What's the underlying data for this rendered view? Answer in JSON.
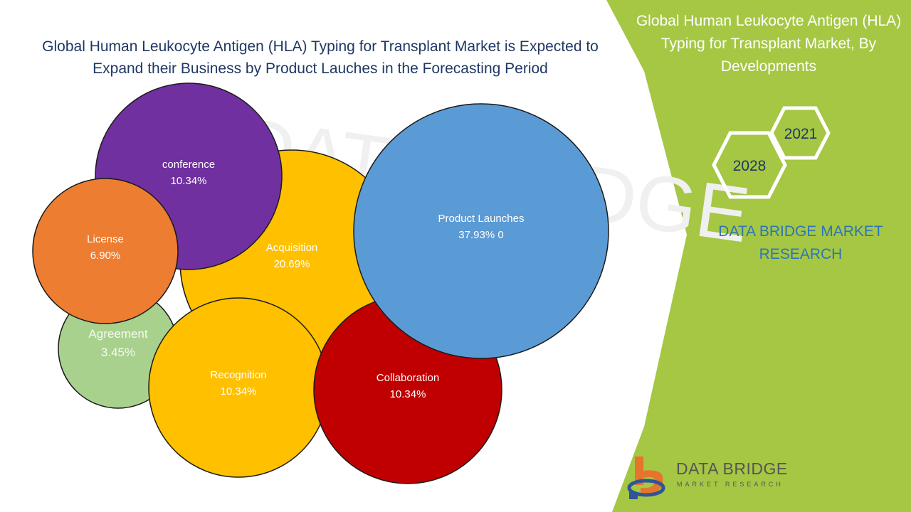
{
  "title": "Global Human Leukocyte Antigen (HLA) Typing for Transplant Market is Expected to Expand their Business by Product Lauches in the Forecasting Period",
  "side_panel": {
    "title": "Global Human Leukocyte Antigen (HLA) Typing for Transplant Market, By Developments",
    "year_start": "2021",
    "year_end": "2028",
    "brand": "DATA BRIDGE MARKET RESEARCH"
  },
  "logo": {
    "name": "DATA BRIDGE",
    "tagline": "MARKET RESEARCH"
  },
  "watermark": "DATA BRIDGE",
  "colors": {
    "panel_green": "#a5c744",
    "title_text": "#1f3864",
    "brand_blue": "#2e75b6"
  },
  "chart_data": {
    "type": "bubble",
    "bubbles": [
      {
        "label": "Product Launches",
        "value_label": "37.93% 0",
        "value": 37.93,
        "color": "#5b9bd5"
      },
      {
        "label": "Acquisition",
        "value_label": "20.69%",
        "value": 20.69,
        "color": "#ffc000"
      },
      {
        "label": "conference",
        "value_label": "10.34%",
        "value": 10.34,
        "color": "#7030a0"
      },
      {
        "label": "Recognition",
        "value_label": "10.34%",
        "value": 10.34,
        "color": "#ffc000"
      },
      {
        "label": "Collaboration",
        "value_label": "10.34%",
        "value": 10.34,
        "color": "#c00000"
      },
      {
        "label": "License",
        "value_label": "6.90%",
        "value": 6.9,
        "color": "#ed7d31"
      },
      {
        "label": "Agreement",
        "value_label": "3.45%",
        "value": 3.45,
        "color": "#a9d18e"
      }
    ]
  }
}
